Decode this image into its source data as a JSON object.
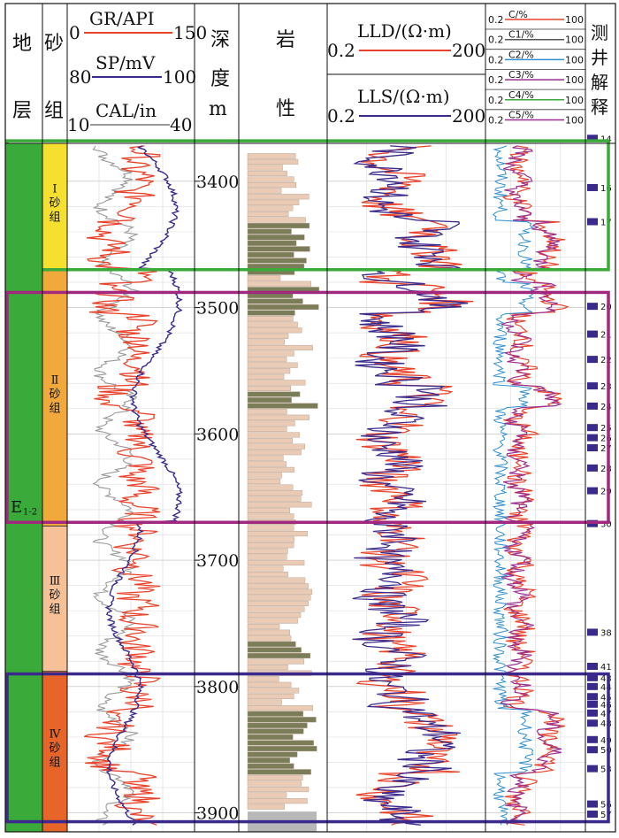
{
  "chart_data": {
    "type": "line",
    "title": "",
    "headers": {
      "stratum_top": "地",
      "stratum_bottom": "层",
      "sandgroup_top": "砂",
      "sandgroup_bottom": "组",
      "depth_a": "深",
      "depth_b": "度",
      "depth_unit": "m",
      "lith_a": "岩",
      "lith_b": "性",
      "interp_1": "测",
      "interp_2": "井",
      "interp_3": "解",
      "interp_4": "释"
    },
    "curves": {
      "gr": {
        "label": "GR/API",
        "min": "0",
        "max": "150",
        "color": "#e8432a"
      },
      "sp": {
        "label": "SP/mV",
        "min": "80",
        "max": "100",
        "color": "#3b2a8c"
      },
      "cal": {
        "label": "CAL/in",
        "min": "10",
        "max": "40",
        "color": "#999999"
      },
      "lld": {
        "label": "LLD/(Ω·m)",
        "min": "0.2",
        "max": "200",
        "color": "#e8432a"
      },
      "lls": {
        "label": "LLS/(Ω·m)",
        "min": "0.2",
        "max": "200",
        "color": "#3b2a8c"
      }
    },
    "conc": [
      {
        "label": "C/%",
        "min": "0.2",
        "max": "100",
        "color": "#e8432a"
      },
      {
        "label": "C1/%",
        "min": "0.2",
        "max": "100",
        "color": "#555555"
      },
      {
        "label": "C2/%",
        "min": "0.2",
        "max": "100",
        "color": "#2f8fd0"
      },
      {
        "label": "C3/%",
        "min": "0.2",
        "max": "100",
        "color": "#9a2f8f"
      },
      {
        "label": "C4/%",
        "min": "0.2",
        "max": "100",
        "color": "#3aaa3a"
      },
      {
        "label": "C5/%",
        "min": "0.2",
        "max": "100",
        "color": "#9a2f8f"
      }
    ],
    "depth": {
      "min": 3370,
      "max": 3915,
      "ticks": [
        "3400",
        "3500",
        "3600",
        "3700",
        "3800",
        "3900"
      ]
    },
    "formation": "E",
    "formation_sub": "1-2",
    "sand_groups": [
      {
        "name": "Ⅰ砂组",
        "top": 3370,
        "bottom": 3470,
        "color": "#f5e02f"
      },
      {
        "name": "Ⅱ砂组",
        "top": 3470,
        "bottom": 3673,
        "color": "#f2a93b"
      },
      {
        "name": "Ⅲ砂组",
        "top": 3673,
        "bottom": 3788,
        "color": "#f7c197"
      },
      {
        "name": "Ⅳ砂组",
        "top": 3788,
        "bottom": 3915,
        "color": "#e8652a"
      }
    ],
    "boxes": [
      {
        "group": "Ⅰ砂组",
        "top": 3368,
        "bottom": 3470,
        "color": "#3aaa3a"
      },
      {
        "group": "Ⅱ砂组",
        "top": 3488,
        "bottom": 3670,
        "color": "#a0287f"
      },
      {
        "group": "Ⅳ砂组",
        "top": 3790,
        "bottom": 3907,
        "color": "#3b2a8c"
      }
    ],
    "interp_layers": [
      "14",
      "16",
      "17",
      "20",
      "21",
      "22",
      "23",
      "24",
      "25",
      "26",
      "27",
      "28",
      "29",
      "30",
      "38",
      "41",
      "43",
      "44",
      "45",
      "46",
      "47",
      "48",
      "49",
      "50",
      "53",
      "56",
      "57"
    ],
    "layer_depths": [
      3366,
      3405,
      3432,
      3499,
      3521,
      3541,
      3562,
      3578,
      3595,
      3603,
      3611,
      3627,
      3645,
      3671,
      3757,
      3784,
      3793,
      3800,
      3808,
      3814,
      3821,
      3829,
      3842,
      3850,
      3865,
      3893,
      3901
    ],
    "grid": true
  }
}
